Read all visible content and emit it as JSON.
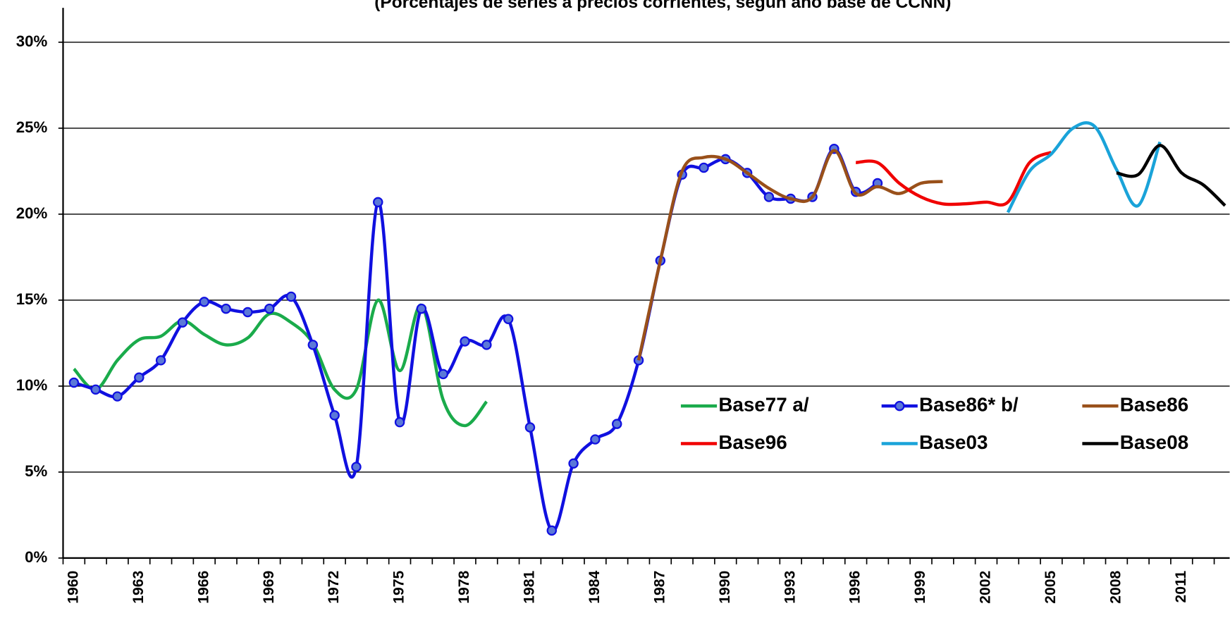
{
  "chart_data": {
    "type": "line",
    "title": "(Porcentajes de series a precios corrientes, según año base de CCNN)",
    "categories": [
      "1960",
      null,
      null,
      "1963",
      null,
      null,
      "1966",
      null,
      null,
      "1969",
      null,
      null,
      "1972",
      null,
      null,
      "1975",
      null,
      null,
      "1978",
      null,
      null,
      "1981",
      null,
      null,
      "1984",
      null,
      null,
      "1987",
      null,
      null,
      "1990",
      null,
      null,
      "1993",
      null,
      null,
      "1996",
      null,
      null,
      "1999",
      null,
      null,
      "2002",
      null,
      null,
      "2005",
      null,
      null,
      "2008",
      null,
      null,
      "2011",
      null,
      null
    ],
    "series": [
      {
        "name": "Base77 a/",
        "color": "#1aab4b",
        "markers": false,
        "values": [
          11.0,
          9.8,
          11.5,
          12.7,
          12.9,
          13.8,
          13.0,
          12.4,
          12.8,
          14.2,
          13.7,
          12.5,
          9.8,
          9.8,
          15.0,
          10.9,
          14.7,
          9.2,
          7.7,
          9.1,
          null,
          null,
          null,
          null,
          null,
          null,
          null,
          null,
          null,
          null,
          null,
          null,
          null,
          null,
          null,
          null,
          null,
          null,
          null,
          null,
          null,
          null,
          null,
          null,
          null,
          null,
          null,
          null,
          null,
          null,
          null,
          null,
          null,
          null
        ]
      },
      {
        "name": "Base86* b/",
        "color": "#1010e0",
        "markers": true,
        "values": [
          10.2,
          9.8,
          9.4,
          10.5,
          11.5,
          13.7,
          14.9,
          14.5,
          14.3,
          14.5,
          15.2,
          12.4,
          8.3,
          5.3,
          20.7,
          7.9,
          14.5,
          10.7,
          12.6,
          12.4,
          13.9,
          7.6,
          1.6,
          5.5,
          6.9,
          7.8,
          11.5,
          17.3,
          22.3,
          22.7,
          23.2,
          22.4,
          21.0,
          20.9,
          21.0,
          23.8,
          21.3,
          21.8,
          null,
          null,
          null,
          null,
          null,
          null,
          null,
          null,
          null,
          null,
          null,
          null,
          null,
          null,
          null,
          null
        ]
      },
      {
        "name": "Base86",
        "color": "#99501a",
        "markers": false,
        "values": [
          null,
          null,
          null,
          null,
          null,
          null,
          null,
          null,
          null,
          null,
          null,
          null,
          null,
          null,
          null,
          null,
          null,
          null,
          null,
          null,
          null,
          null,
          null,
          null,
          null,
          null,
          11.5,
          17.3,
          22.5,
          23.3,
          23.2,
          22.4,
          21.5,
          20.9,
          21.0,
          23.7,
          21.2,
          21.6,
          21.2,
          21.8,
          21.9,
          null,
          null,
          null,
          null,
          null,
          null,
          null,
          null,
          null,
          null,
          null,
          null,
          null
        ]
      },
      {
        "name": "Base96",
        "color": "#f00000",
        "markers": false,
        "values": [
          null,
          null,
          null,
          null,
          null,
          null,
          null,
          null,
          null,
          null,
          null,
          null,
          null,
          null,
          null,
          null,
          null,
          null,
          null,
          null,
          null,
          null,
          null,
          null,
          null,
          null,
          null,
          null,
          null,
          null,
          null,
          null,
          null,
          null,
          null,
          null,
          23.0,
          23.0,
          21.8,
          21.0,
          20.6,
          20.6,
          20.7,
          20.7,
          23.0,
          23.6,
          null,
          null,
          null,
          null,
          null,
          null,
          null,
          null
        ]
      },
      {
        "name": "Base03",
        "color": "#1aa3d9",
        "markers": false,
        "values": [
          null,
          null,
          null,
          null,
          null,
          null,
          null,
          null,
          null,
          null,
          null,
          null,
          null,
          null,
          null,
          null,
          null,
          null,
          null,
          null,
          null,
          null,
          null,
          null,
          null,
          null,
          null,
          null,
          null,
          null,
          null,
          null,
          null,
          null,
          null,
          null,
          null,
          null,
          null,
          null,
          null,
          null,
          null,
          20.1,
          22.5,
          23.5,
          25.0,
          25.1,
          22.6,
          20.5,
          24.2,
          null,
          null,
          null
        ]
      },
      {
        "name": "Base08",
        "color": "#000000",
        "markers": false,
        "values": [
          null,
          null,
          null,
          null,
          null,
          null,
          null,
          null,
          null,
          null,
          null,
          null,
          null,
          null,
          null,
          null,
          null,
          null,
          null,
          null,
          null,
          null,
          null,
          null,
          null,
          null,
          null,
          null,
          null,
          null,
          null,
          null,
          null,
          null,
          null,
          null,
          null,
          null,
          null,
          null,
          null,
          null,
          null,
          null,
          null,
          null,
          null,
          null,
          22.4,
          22.3,
          24.0,
          22.4,
          21.7,
          20.5
        ]
      }
    ],
    "ylim": [
      0,
      32
    ],
    "yticks": [
      {
        "value": 0,
        "label": "0%"
      },
      {
        "value": 5,
        "label": "5%"
      },
      {
        "value": 10,
        "label": "10%"
      },
      {
        "value": 15,
        "label": "15%"
      },
      {
        "value": 20,
        "label": "20%"
      },
      {
        "value": 25,
        "label": "25%"
      },
      {
        "value": 30,
        "label": "30%"
      }
    ],
    "grid": true,
    "smooth": true,
    "legend": "lower right"
  }
}
